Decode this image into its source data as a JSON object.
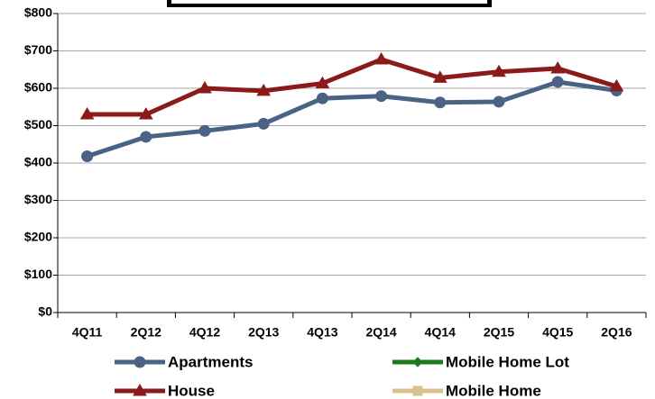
{
  "chart_data": {
    "type": "line",
    "categories": [
      "4Q11",
      "2Q12",
      "4Q12",
      "2Q13",
      "4Q13",
      "2Q14",
      "4Q14",
      "2Q15",
      "4Q15",
      "2Q16"
    ],
    "series": [
      {
        "name": "Apartments",
        "color": "#4a6284",
        "marker": "circle",
        "values": [
          418,
          470,
          486,
          505,
          573,
          579,
          562,
          564,
          617,
          594
        ]
      },
      {
        "name": "Mobile Home Lot",
        "color": "#1e7a1e",
        "marker": "diamond",
        "values": [
          null,
          null,
          null,
          null,
          null,
          null,
          null,
          null,
          null,
          null
        ]
      },
      {
        "name": "House",
        "color": "#8b1a1a",
        "marker": "triangle",
        "values": [
          530,
          530,
          600,
          593,
          613,
          677,
          628,
          644,
          653,
          605
        ]
      },
      {
        "name": "Mobile Home",
        "color": "#d9c08c",
        "marker": "square",
        "values": [
          null,
          null,
          null,
          null,
          null,
          null,
          null,
          null,
          null,
          null
        ]
      }
    ],
    "ylim": [
      0,
      800
    ],
    "yticks": [
      {
        "value": 0,
        "label": "$0"
      },
      {
        "value": 100,
        "label": "$100"
      },
      {
        "value": 200,
        "label": "$200"
      },
      {
        "value": 300,
        "label": "$300"
      },
      {
        "value": 400,
        "label": "$400"
      },
      {
        "value": 500,
        "label": "$500"
      },
      {
        "value": 600,
        "label": "$600"
      },
      {
        "value": 700,
        "label": "$700"
      },
      {
        "value": 800,
        "label": "$800"
      }
    ],
    "grid": true
  }
}
